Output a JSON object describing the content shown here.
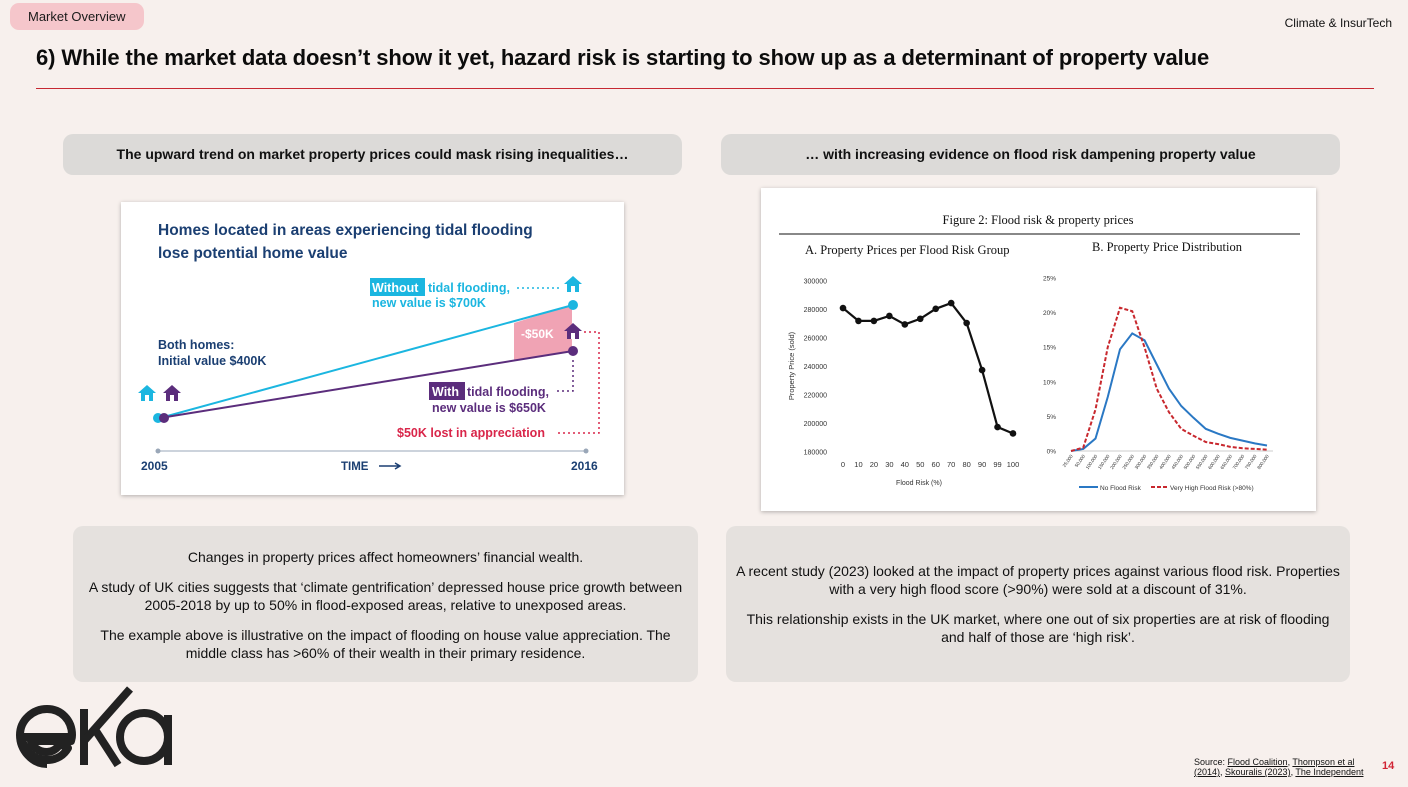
{
  "header": {
    "tag": "Market Overview",
    "brand": "Climate & InsurTech",
    "headline": "6) While the market data doesn’t show it yet, hazard risk is starting to show up as a determinant of property value"
  },
  "left": {
    "pill": "The upward trend on market property prices could mask rising inequalities…",
    "figure": {
      "title_line1": "Homes located in areas experiencing tidal flooding",
      "title_line2": "lose potential home value",
      "without_highlight": "Without",
      "without_rest": "tidal flooding,",
      "without_value": "new value is $700K",
      "both_line1": "Both homes:",
      "both_line2": "Initial value $400K",
      "gap_label": "-$50K",
      "with_highlight": "With",
      "with_rest": "tidal flooding,",
      "with_value": "new value is $650K",
      "lost": "$50K lost in appreciation",
      "x_start": "2005",
      "x_mid": "TIME",
      "x_end": "2016",
      "colors": {
        "without": "#1bb6e0",
        "with": "#5b2d7c",
        "gap": "#f0a3b4",
        "lost": "#d9264a",
        "title": "#1b3f72"
      }
    },
    "paragraphs": [
      "Changes in property prices affect homeowners’ financial wealth.",
      "A study of UK cities suggests that ‘climate gentrification’ depressed house price growth between 2005-2018 by up to 50% in flood-exposed areas, relative to unexposed areas.",
      "The example above is illustrative on the impact of flooding on house value appreciation. The middle class has >60% of their wealth in their primary residence."
    ]
  },
  "right": {
    "pill": "… with increasing evidence on flood risk dampening property value",
    "figure": {
      "title": "Figure 2: Flood risk & property prices",
      "panel_a_title": "A.  Property Prices per Flood Risk Group",
      "panel_b_title": "B.  Property Price Distribution",
      "panel_a_ylabel": "Property Price (sold)",
      "panel_a_xlabel": "Flood Risk (%)",
      "legend_no": "No Flood Risk",
      "legend_high": "Very High Flood Risk (>80%)"
    },
    "paragraphs": [
      "A recent study (2023) looked at the impact of property prices against various flood risk. Properties with a very high flood score (>90%) were sold at a discount of 31%.",
      "This relationship exists in the UK market, where one out of six properties are at risk of flooding and half of those are ‘high risk’."
    ]
  },
  "chart_data": [
    {
      "type": "line",
      "title": "Homes located in areas experiencing tidal flooding lose potential home value",
      "x": [
        "2005",
        "2016"
      ],
      "series": [
        {
          "name": "Without tidal flooding",
          "values": [
            400000,
            700000
          ]
        },
        {
          "name": "With tidal flooding",
          "values": [
            400000,
            650000
          ]
        }
      ]
    },
    {
      "type": "line",
      "title": "A.  Property Prices per Flood Risk Group",
      "xlabel": "Flood Risk (%)",
      "ylabel": "Property Price (sold)",
      "x": [
        "0",
        "10",
        "20",
        "30",
        "40",
        "50",
        "60",
        "70",
        "80",
        "90",
        "99",
        "100"
      ],
      "series": [
        {
          "name": "",
          "values": [
            281000,
            272000,
            272000,
            275500,
            269500,
            273500,
            280500,
            284500,
            270500,
            237500,
            197500,
            193000
          ]
        }
      ],
      "yticks": [
        "180000",
        "200000",
        "220000",
        "240000",
        "260000",
        "280000",
        "300000"
      ],
      "ylim": [
        180000,
        300000
      ]
    },
    {
      "type": "line",
      "title": "B.  Property Price Distribution",
      "categories": [
        "25,000",
        "50,000",
        "100,000",
        "150,000",
        "200,000",
        "250,000",
        "300,000",
        "350,000",
        "400,000",
        "450,000",
        "500,000",
        "550,000",
        "600,000",
        "650,000",
        "700,000",
        "750,000",
        "800,000"
      ],
      "series": [
        {
          "name": "No Flood Risk",
          "values": [
            0.0,
            0.3,
            1.8,
            7.8,
            14.7,
            17.0,
            16.0,
            12.5,
            9.0,
            6.5,
            4.8,
            3.2,
            2.5,
            1.9,
            1.5,
            1.1,
            0.8
          ]
        },
        {
          "name": "Very High Flood Risk (>80%)",
          "values": [
            0.0,
            0.5,
            6.0,
            15.0,
            20.7,
            20.2,
            15.0,
            9.0,
            5.6,
            3.2,
            2.2,
            1.3,
            1.0,
            0.6,
            0.4,
            0.3,
            0.2
          ]
        }
      ],
      "yticks": [
        "0%",
        "5%",
        "10%",
        "15%",
        "20%",
        "25%"
      ],
      "ylim": [
        0,
        25
      ],
      "legend": "bottom"
    }
  ],
  "footer": {
    "source_prefix": "Source: ",
    "src1": "Flood Coalition",
    "src2": "Thompson et al",
    "src3": "(2014)",
    "src4": "Skouralis (2023)",
    "src5": "The Independent",
    "page": "14",
    "logo_text": "eka"
  }
}
